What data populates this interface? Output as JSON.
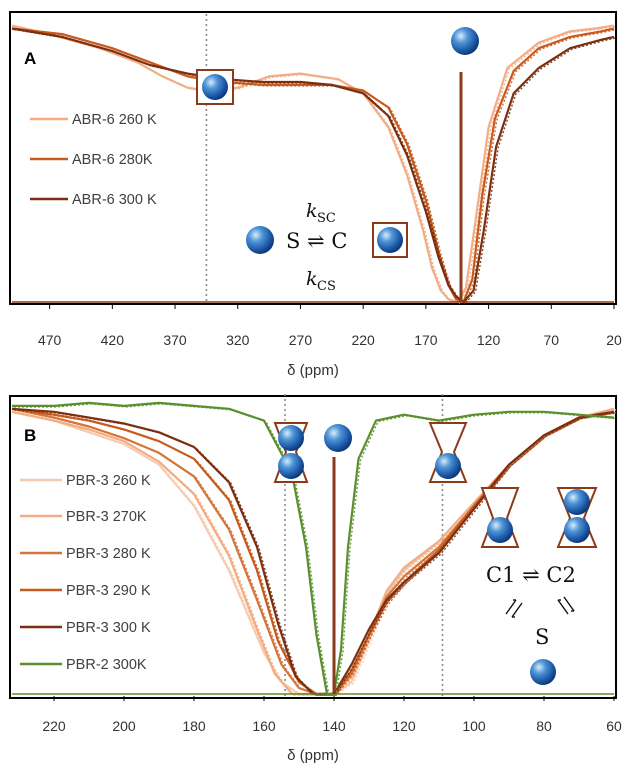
{
  "chart_data": [
    {
      "type": "line",
      "panel_label": "A",
      "xlabel": "δ (ppm)",
      "xlim": [
        500,
        20
      ],
      "ylim": [
        0,
        1
      ],
      "xticks": [
        "470",
        "420",
        "370",
        "320",
        "270",
        "220",
        "170",
        "120",
        "70",
        "20"
      ],
      "xtick_values": [
        470,
        420,
        370,
        320,
        270,
        220,
        170,
        120,
        70,
        20
      ],
      "colors": {
        "c260": "#f2ad84",
        "c280": "#c75a1c",
        "c300": "#7a2f10",
        "site": "#8b3a1a"
      },
      "dotted_line_x": [
        345
      ],
      "stick_x": 142,
      "scheme": {
        "k_top": "k",
        "k_top_sub": "SC",
        "equilibrium": "S ⇌ C",
        "k_bottom": "k",
        "k_bottom_sub": "CS"
      },
      "legend_position": "left",
      "series": [
        {
          "name": "ABR-6 260 K",
          "color": "#f2ad84",
          "points": [
            [
              500,
              0.98
            ],
            [
              470,
              0.95
            ],
            [
              430,
              0.9
            ],
            [
              400,
              0.85
            ],
            [
              380,
              0.8
            ],
            [
              360,
              0.76
            ],
            [
              345,
              0.75
            ],
            [
              320,
              0.76
            ],
            [
              295,
              0.8
            ],
            [
              270,
              0.81
            ],
            [
              240,
              0.79
            ],
            [
              220,
              0.74
            ],
            [
              200,
              0.62
            ],
            [
              185,
              0.45
            ],
            [
              172,
              0.25
            ],
            [
              165,
              0.12
            ],
            [
              158,
              0.04
            ],
            [
              152,
              0.01
            ],
            [
              145,
              0.0
            ],
            [
              138,
              0.05
            ],
            [
              130,
              0.3
            ],
            [
              120,
              0.62
            ],
            [
              105,
              0.83
            ],
            [
              80,
              0.92
            ],
            [
              55,
              0.96
            ],
            [
              35,
              0.97
            ],
            [
              20,
              0.98
            ]
          ]
        },
        {
          "name": "ABR-6 280K",
          "color": "#c75a1c",
          "points": [
            [
              500,
              0.97
            ],
            [
              460,
              0.95
            ],
            [
              420,
              0.9
            ],
            [
              390,
              0.85
            ],
            [
              360,
              0.8
            ],
            [
              330,
              0.78
            ],
            [
              300,
              0.77
            ],
            [
              270,
              0.77
            ],
            [
              245,
              0.77
            ],
            [
              220,
              0.75
            ],
            [
              200,
              0.69
            ],
            [
              185,
              0.56
            ],
            [
              170,
              0.36
            ],
            [
              160,
              0.18
            ],
            [
              152,
              0.06
            ],
            [
              146,
              0.01
            ],
            [
              140,
              0.0
            ],
            [
              133,
              0.08
            ],
            [
              125,
              0.38
            ],
            [
              115,
              0.65
            ],
            [
              100,
              0.82
            ],
            [
              80,
              0.9
            ],
            [
              55,
              0.94
            ],
            [
              30,
              0.96
            ],
            [
              20,
              0.97
            ]
          ]
        },
        {
          "name": "ABR-6 300 K",
          "color": "#7a2f10",
          "points": [
            [
              500,
              0.97
            ],
            [
              460,
              0.94
            ],
            [
              420,
              0.89
            ],
            [
              390,
              0.84
            ],
            [
              360,
              0.81
            ],
            [
              330,
              0.79
            ],
            [
              300,
              0.78
            ],
            [
              270,
              0.78
            ],
            [
              245,
              0.77
            ],
            [
              220,
              0.74
            ],
            [
              200,
              0.66
            ],
            [
              185,
              0.52
            ],
            [
              170,
              0.32
            ],
            [
              160,
              0.16
            ],
            [
              152,
              0.06
            ],
            [
              146,
              0.02
            ],
            [
              140,
              0.0
            ],
            [
              132,
              0.04
            ],
            [
              124,
              0.25
            ],
            [
              114,
              0.55
            ],
            [
              100,
              0.74
            ],
            [
              80,
              0.83
            ],
            [
              55,
              0.9
            ],
            [
              30,
              0.93
            ],
            [
              20,
              0.94
            ]
          ]
        }
      ]
    },
    {
      "type": "line",
      "panel_label": "B",
      "xlabel": "δ (ppm)",
      "xlim": [
        232,
        60
      ],
      "ylim": [
        0,
        1
      ],
      "xticks": [
        "220",
        "200",
        "180",
        "160",
        "140",
        "120",
        "100",
        "80",
        "60"
      ],
      "xtick_values": [
        220,
        200,
        180,
        160,
        140,
        120,
        100,
        80,
        60
      ],
      "colors": {
        "site": "#8b3a1a"
      },
      "dotted_line_x": [
        154,
        109
      ],
      "stick_x": 140,
      "scheme": {
        "equilibrium": "C1 ⇌ C2",
        "bottom_label": "S"
      },
      "legend_position": "left",
      "series": [
        {
          "name": "PBR-3 260 K",
          "color": "#f7cbb0",
          "points": [
            [
              232,
              0.96
            ],
            [
              220,
              0.93
            ],
            [
              210,
              0.89
            ],
            [
              200,
              0.85
            ],
            [
              190,
              0.78
            ],
            [
              180,
              0.64
            ],
            [
              170,
              0.42
            ],
            [
              160,
              0.14
            ],
            [
              155,
              0.04
            ],
            [
              150,
              0.0
            ],
            [
              145,
              0.0
            ],
            [
              140,
              0.0
            ],
            [
              135,
              0.04
            ],
            [
              130,
              0.18
            ],
            [
              125,
              0.34
            ],
            [
              120,
              0.42
            ],
            [
              110,
              0.52
            ],
            [
              100,
              0.65
            ],
            [
              90,
              0.78
            ],
            [
              80,
              0.88
            ],
            [
              70,
              0.94
            ],
            [
              60,
              0.97
            ]
          ]
        },
        {
          "name": "PBR-3 270K",
          "color": "#f2ad84",
          "points": [
            [
              232,
              0.96
            ],
            [
              220,
              0.93
            ],
            [
              210,
              0.9
            ],
            [
              200,
              0.86
            ],
            [
              190,
              0.79
            ],
            [
              180,
              0.68
            ],
            [
              170,
              0.47
            ],
            [
              162,
              0.22
            ],
            [
              157,
              0.07
            ],
            [
              152,
              0.0
            ],
            [
              145,
              0.0
            ],
            [
              140,
              0.0
            ],
            [
              135,
              0.06
            ],
            [
              130,
              0.2
            ],
            [
              125,
              0.35
            ],
            [
              120,
              0.43
            ],
            [
              110,
              0.52
            ],
            [
              100,
              0.65
            ],
            [
              90,
              0.78
            ],
            [
              80,
              0.88
            ],
            [
              70,
              0.94
            ],
            [
              60,
              0.97
            ]
          ]
        },
        {
          "name": "PBR-3 280 K",
          "color": "#d4753a",
          "points": [
            [
              232,
              0.97
            ],
            [
              220,
              0.94
            ],
            [
              210,
              0.91
            ],
            [
              200,
              0.87
            ],
            [
              190,
              0.82
            ],
            [
              180,
              0.74
            ],
            [
              170,
              0.56
            ],
            [
              162,
              0.32
            ],
            [
              155,
              0.1
            ],
            [
              150,
              0.02
            ],
            [
              145,
              0.0
            ],
            [
              140,
              0.0
            ],
            [
              135,
              0.07
            ],
            [
              130,
              0.2
            ],
            [
              125,
              0.33
            ],
            [
              120,
              0.4
            ],
            [
              110,
              0.5
            ],
            [
              100,
              0.64
            ],
            [
              90,
              0.78
            ],
            [
              80,
              0.88
            ],
            [
              70,
              0.94
            ],
            [
              60,
              0.96
            ]
          ]
        },
        {
          "name": "PBR-3 290 K",
          "color": "#c75a1c",
          "points": [
            [
              232,
              0.97
            ],
            [
              220,
              0.95
            ],
            [
              210,
              0.93
            ],
            [
              200,
              0.9
            ],
            [
              190,
              0.86
            ],
            [
              180,
              0.8
            ],
            [
              170,
              0.66
            ],
            [
              162,
              0.42
            ],
            [
              156,
              0.18
            ],
            [
              150,
              0.04
            ],
            [
              145,
              0.0
            ],
            [
              140,
              0.0
            ],
            [
              135,
              0.08
            ],
            [
              130,
              0.2
            ],
            [
              125,
              0.31
            ],
            [
              120,
              0.38
            ],
            [
              110,
              0.49
            ],
            [
              100,
              0.64
            ],
            [
              90,
              0.78
            ],
            [
              80,
              0.88
            ],
            [
              70,
              0.94
            ],
            [
              60,
              0.96
            ]
          ]
        },
        {
          "name": "PBR-3 300 K",
          "color": "#7a2f10",
          "points": [
            [
              232,
              0.97
            ],
            [
              220,
              0.96
            ],
            [
              210,
              0.94
            ],
            [
              200,
              0.92
            ],
            [
              190,
              0.89
            ],
            [
              180,
              0.84
            ],
            [
              170,
              0.72
            ],
            [
              162,
              0.5
            ],
            [
              156,
              0.24
            ],
            [
              151,
              0.06
            ],
            [
              146,
              0.0
            ],
            [
              140,
              0.0
            ],
            [
              135,
              0.1
            ],
            [
              130,
              0.22
            ],
            [
              125,
              0.32
            ],
            [
              120,
              0.38
            ],
            [
              110,
              0.48
            ],
            [
              100,
              0.63
            ],
            [
              90,
              0.78
            ],
            [
              80,
              0.88
            ],
            [
              70,
              0.94
            ],
            [
              60,
              0.96
            ]
          ]
        },
        {
          "name": "PBR-2 300K",
          "color": "#5a8f2e",
          "points": [
            [
              232,
              0.98
            ],
            [
              220,
              0.98
            ],
            [
              210,
              0.99
            ],
            [
              200,
              0.98
            ],
            [
              190,
              0.99
            ],
            [
              180,
              0.98
            ],
            [
              170,
              0.97
            ],
            [
              160,
              0.93
            ],
            [
              152,
              0.75
            ],
            [
              148,
              0.5
            ],
            [
              145,
              0.2
            ],
            [
              142,
              0.0
            ],
            [
              140,
              0.0
            ],
            [
              138,
              0.15
            ],
            [
              136,
              0.5
            ],
            [
              133,
              0.8
            ],
            [
              128,
              0.93
            ],
            [
              120,
              0.95
            ],
            [
              110,
              0.93
            ],
            [
              100,
              0.95
            ],
            [
              90,
              0.96
            ],
            [
              80,
              0.96
            ],
            [
              70,
              0.95
            ],
            [
              60,
              0.94
            ]
          ]
        }
      ]
    }
  ]
}
